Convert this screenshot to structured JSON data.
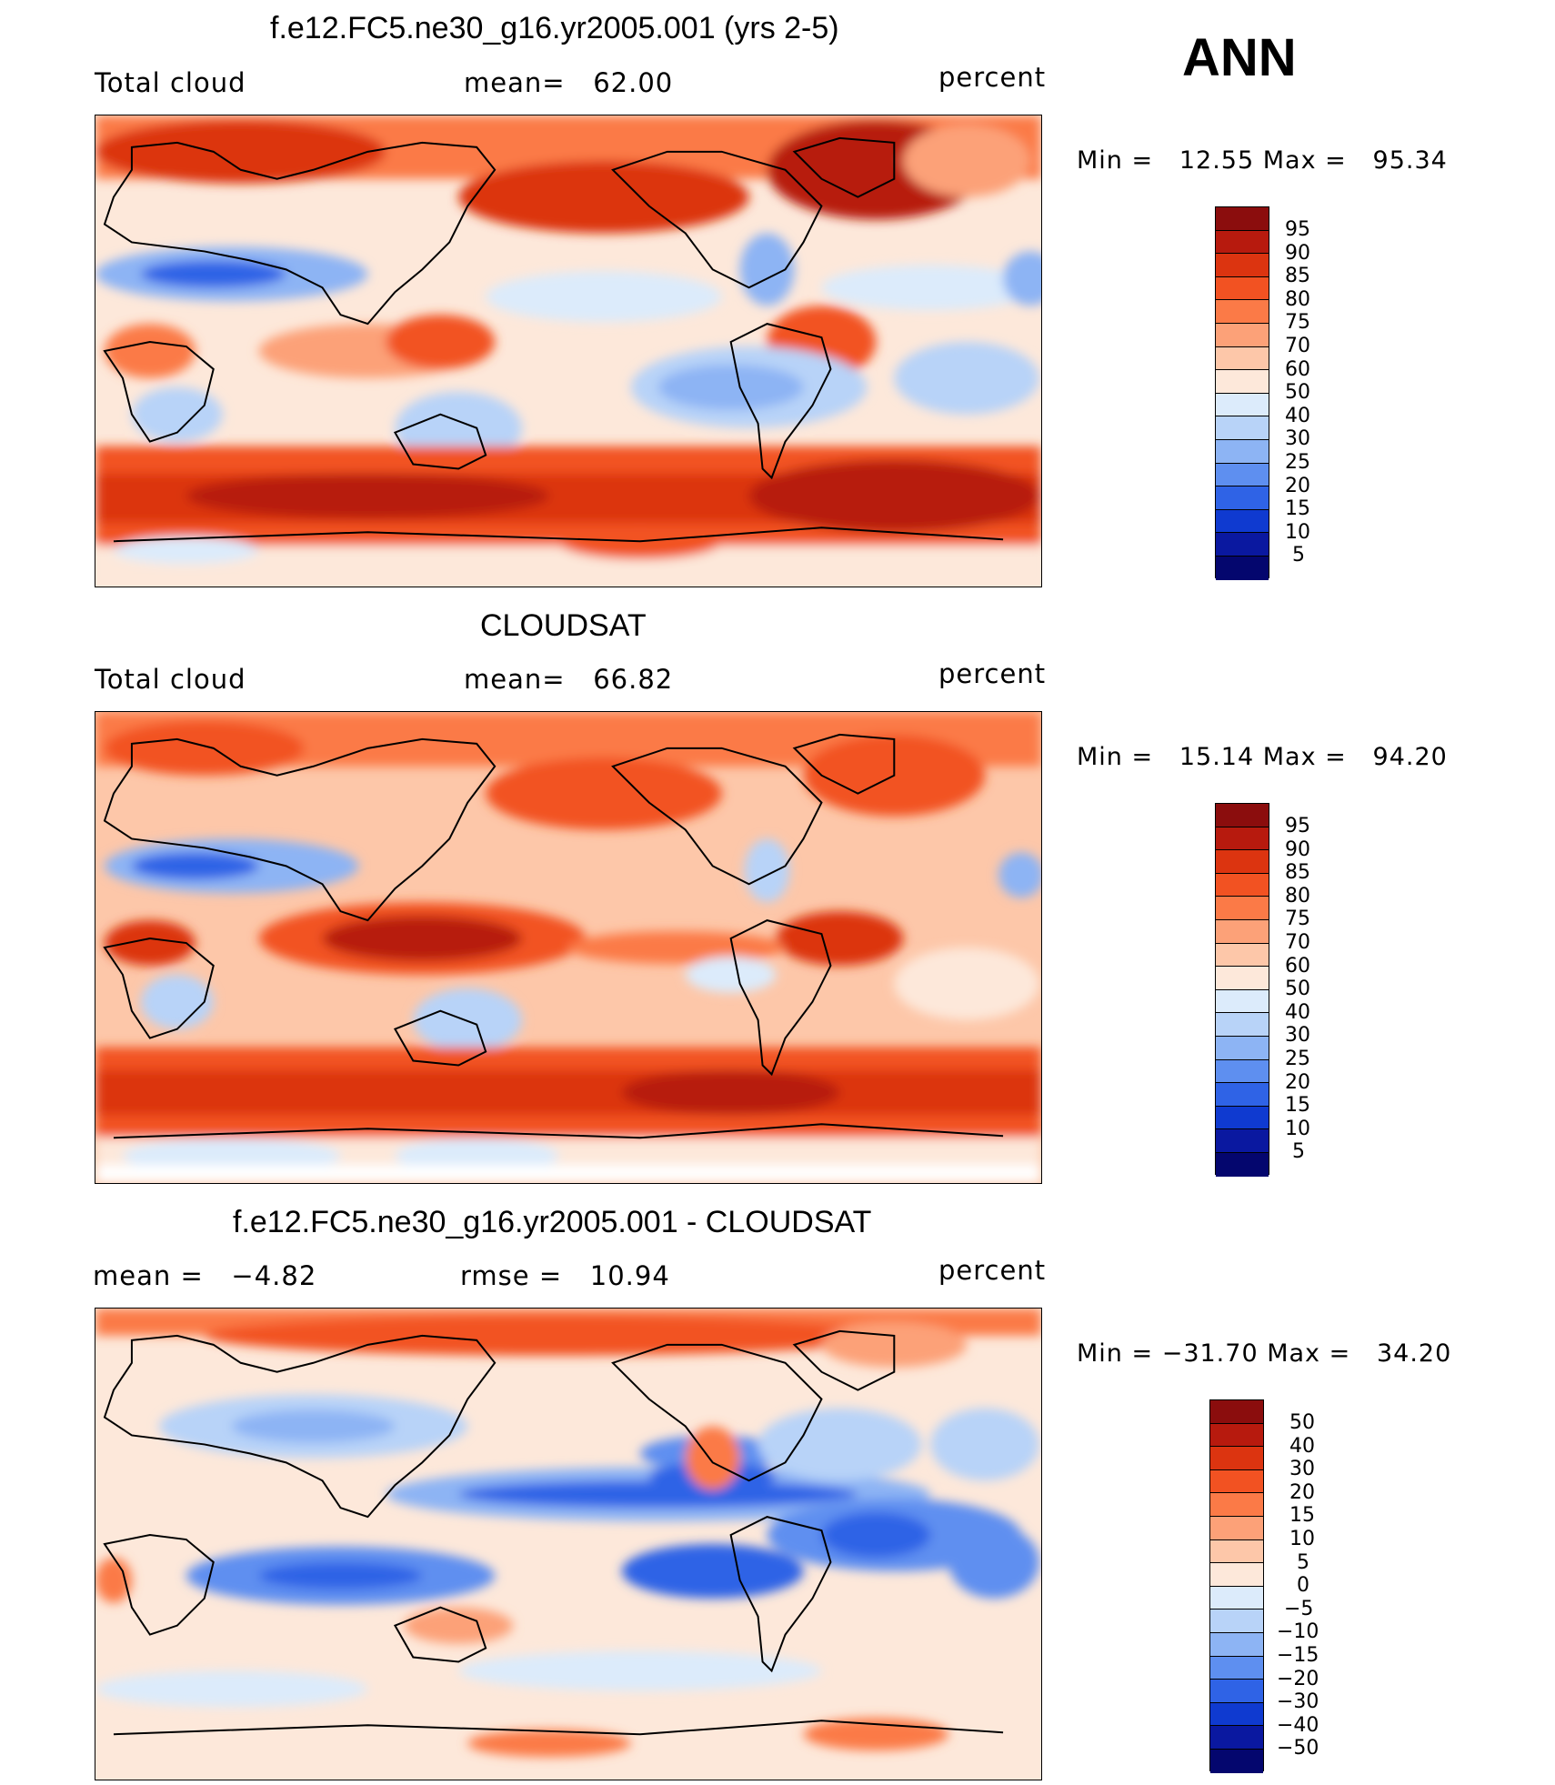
{
  "season": "ANN",
  "units": "percent",
  "panels": [
    {
      "id": "model",
      "title": "f.e12.FC5.ne30_g16.yr2005.001 (yrs 2-5)",
      "left_label": "Total cloud",
      "mid_label": "mean=   62.00",
      "right_label": "percent",
      "stats": "Min =   12.55 Max =   95.34",
      "colorbar_levels": [
        "95",
        "90",
        "85",
        "80",
        "75",
        "70",
        "60",
        "50",
        "40",
        "30",
        "25",
        "20",
        "15",
        "10",
        "5"
      ]
    },
    {
      "id": "obs",
      "title": "CLOUDSAT",
      "left_label": "Total cloud",
      "mid_label": "mean=   66.82",
      "right_label": "percent",
      "stats": "Min =   15.14 Max =   94.20",
      "colorbar_levels": [
        "95",
        "90",
        "85",
        "80",
        "75",
        "70",
        "60",
        "50",
        "40",
        "30",
        "25",
        "20",
        "15",
        "10",
        "5"
      ]
    },
    {
      "id": "diff",
      "title": "f.e12.FC5.ne30_g16.yr2005.001 - CLOUDSAT",
      "left_label": "mean =   −4.82",
      "mid_label": "rmse =   10.94",
      "right_label": "percent",
      "stats": "Min = −31.70 Max =   34.20",
      "colorbar_levels": [
        "50",
        "40",
        "30",
        "20",
        "15",
        "10",
        "5",
        "0",
        "−5",
        "−10",
        "−15",
        "−20",
        "−30",
        "−40",
        "−50"
      ]
    }
  ],
  "colors": {
    "colorbar_palette": [
      "#8b0d0d",
      "#b71a0e",
      "#dc3410",
      "#f25222",
      "#fb7a47",
      "#fca178",
      "#fdc7a9",
      "#fde8da",
      "#dcebfb",
      "#b8d3f8",
      "#8db4f4",
      "#5e8ff0",
      "#2f63e6",
      "#0f3ad0",
      "#0a18a0",
      "#04066e"
    ],
    "ocean_base": "#fbe3d4"
  }
}
